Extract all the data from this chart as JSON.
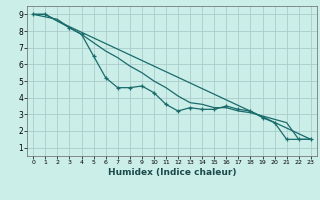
{
  "xlabel": "Humidex (Indice chaleur)",
  "background_color": "#cceee8",
  "grid_color": "#aacccc",
  "line_color": "#1a6b6b",
  "xlim": [
    -0.5,
    23.5
  ],
  "ylim": [
    0.5,
    9.5
  ],
  "xticks": [
    0,
    1,
    2,
    3,
    4,
    5,
    6,
    7,
    8,
    9,
    10,
    11,
    12,
    13,
    14,
    15,
    16,
    17,
    18,
    19,
    20,
    21,
    22,
    23
  ],
  "yticks": [
    1,
    2,
    3,
    4,
    5,
    6,
    7,
    8,
    9
  ],
  "series1_x": [
    0,
    1,
    3,
    4,
    5,
    6,
    7,
    8,
    9,
    10,
    11,
    12,
    13,
    14,
    15,
    16,
    17,
    18,
    19,
    20,
    21,
    22,
    23
  ],
  "series1_y": [
    9,
    9,
    8.2,
    7.8,
    6.5,
    5.2,
    4.6,
    4.6,
    4.7,
    4.3,
    3.6,
    3.2,
    3.4,
    3.3,
    3.3,
    3.5,
    3.3,
    3.2,
    2.8,
    2.5,
    1.5,
    1.5,
    1.5
  ],
  "series2_x": [
    0,
    1,
    2,
    23
  ],
  "series2_y": [
    9,
    9,
    8.6,
    1.5
  ],
  "series3_x": [
    0,
    2,
    3,
    4,
    5,
    6,
    7,
    8,
    9,
    10,
    11,
    12,
    13,
    14,
    15,
    16,
    17,
    18,
    19,
    20,
    21,
    22,
    23
  ],
  "series3_y": [
    9,
    8.7,
    8.2,
    7.8,
    7.3,
    6.8,
    6.4,
    5.9,
    5.5,
    5.0,
    4.6,
    4.1,
    3.7,
    3.6,
    3.4,
    3.4,
    3.2,
    3.1,
    2.9,
    2.7,
    2.5,
    1.5,
    1.5
  ]
}
